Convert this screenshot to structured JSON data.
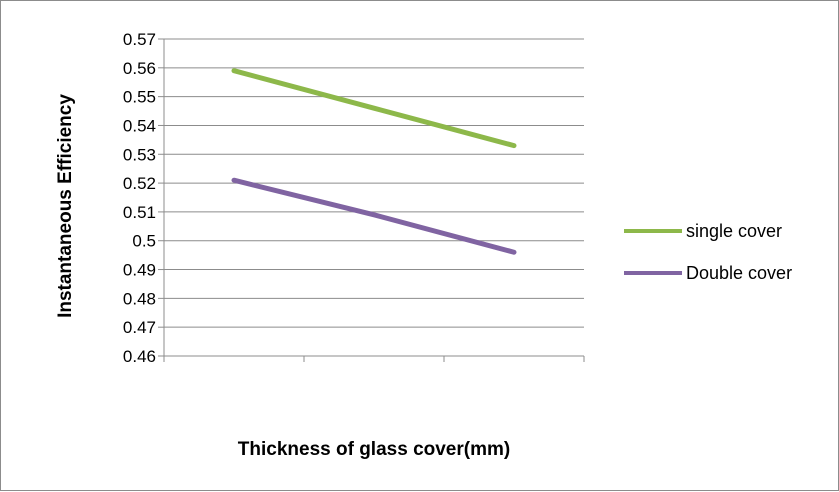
{
  "chart_data": {
    "type": "line",
    "title": "",
    "xlabel": "Thickness of glass cover(mm)",
    "ylabel": "Instantaneous  Efficiency",
    "x_categories": [
      "",
      "",
      ""
    ],
    "ylim": [
      0.46,
      0.57
    ],
    "yticks": [
      {
        "value": 0.46,
        "label": "0.46"
      },
      {
        "value": 0.47,
        "label": "0.47"
      },
      {
        "value": 0.48,
        "label": "0.48"
      },
      {
        "value": 0.49,
        "label": "0.49"
      },
      {
        "value": 0.5,
        "label": "0.5"
      },
      {
        "value": 0.51,
        "label": "0.51"
      },
      {
        "value": 0.52,
        "label": "0.52"
      },
      {
        "value": 0.53,
        "label": "0.53"
      },
      {
        "value": 0.54,
        "label": "0.54"
      },
      {
        "value": 0.55,
        "label": "0.55"
      },
      {
        "value": 0.56,
        "label": "0.56"
      },
      {
        "value": 0.57,
        "label": "0.57"
      }
    ],
    "grid": true,
    "legend_position": "right",
    "series": [
      {
        "name": "single cover",
        "color": "#8DB84A",
        "x_index": [
          0,
          1,
          2
        ],
        "values": [
          0.559,
          0.546,
          0.533
        ]
      },
      {
        "name": "Double cover",
        "color": "#8064A2",
        "x_index": [
          0,
          1,
          2
        ],
        "values": [
          0.521,
          0.509,
          0.496
        ]
      }
    ]
  }
}
